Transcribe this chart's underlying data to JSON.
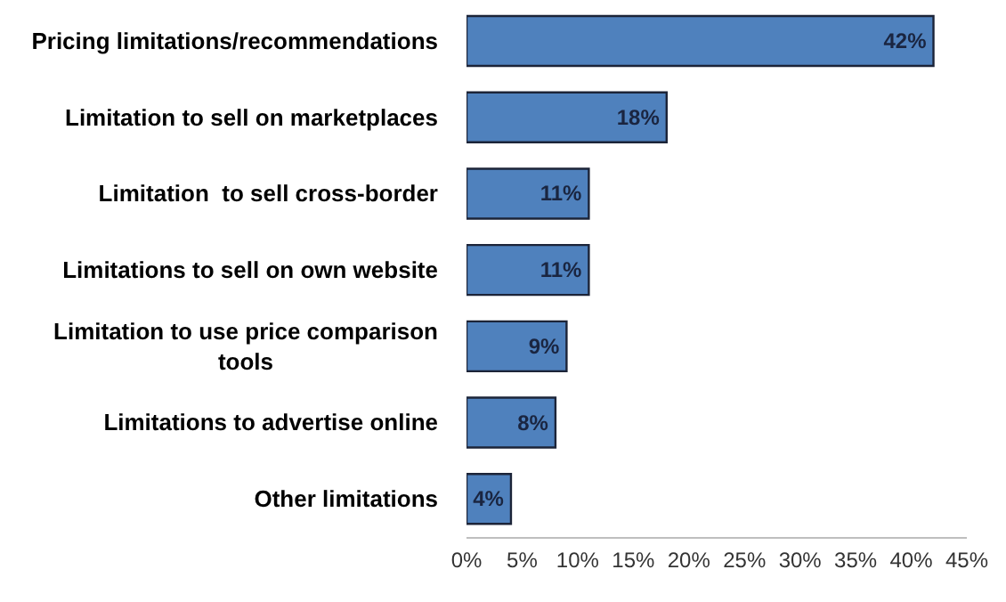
{
  "chart_data": {
    "type": "bar",
    "orientation": "horizontal",
    "categories": [
      "Pricing limitations/recommendations",
      "Limitation to sell on marketplaces",
      "Limitation  to sell cross-border",
      "Limitations to sell on own website",
      "Limitation to use price comparison tools",
      "Limitations to advertise online",
      "Other limitations"
    ],
    "values": [
      42,
      18,
      11,
      11,
      9,
      8,
      4
    ],
    "value_labels": [
      "42%",
      "18%",
      "11%",
      "11%",
      "9%",
      "8%",
      "4%"
    ],
    "color": "#4f81bd",
    "xlim": [
      0,
      45
    ],
    "xticks": [
      {
        "value": 0,
        "label": "0%"
      },
      {
        "value": 5,
        "label": "5%"
      },
      {
        "value": 10,
        "label": "10%"
      },
      {
        "value": 15,
        "label": "15%"
      },
      {
        "value": 20,
        "label": "20%"
      },
      {
        "value": 25,
        "label": "25%"
      },
      {
        "value": 30,
        "label": "30%"
      },
      {
        "value": 35,
        "label": "35%"
      },
      {
        "value": 40,
        "label": "40%"
      },
      {
        "value": 45,
        "label": "45%"
      }
    ],
    "grid": false,
    "legend": false
  }
}
